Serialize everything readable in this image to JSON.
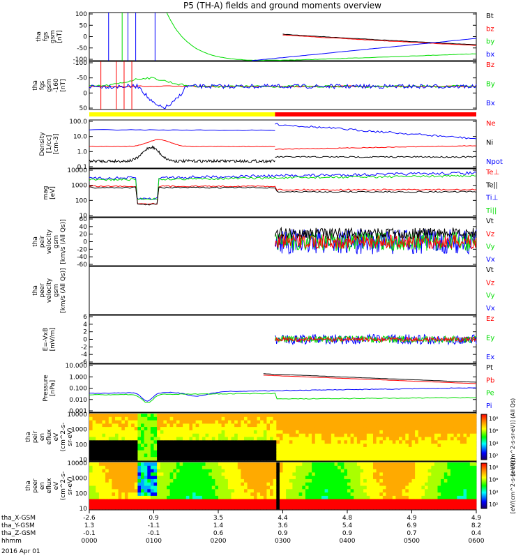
{
  "title": "P5 (TH-A) fields and ground moments overview",
  "colors": {
    "black": "#000000",
    "red": "#ff0000",
    "green": "#00dd00",
    "blue": "#0000ff",
    "yellow": "#ffff00"
  },
  "chart_data": [
    {
      "type": "line",
      "panel": "fgs",
      "ylabel": [
        "tha",
        "fgs",
        "gsm",
        "[nT]"
      ],
      "yticks": [
        "100",
        "50",
        "0",
        "-50",
        "-100"
      ],
      "legend": [
        {
          "label": "Bt",
          "color": "#000000"
        },
        {
          "label": "bz",
          "color": "#ff0000"
        },
        {
          "label": "by",
          "color": "#00dd00"
        },
        {
          "label": "bx",
          "color": "#0000ff"
        }
      ]
    },
    {
      "type": "line",
      "panel": "fgs_dsl",
      "ylabel": [
        "tha",
        "fgs",
        "gsm",
        "-160",
        "[nT]"
      ],
      "yticks": [
        "-100",
        "-50",
        "0",
        "50"
      ],
      "legend": [
        {
          "label": "Bz",
          "color": "#ff0000"
        },
        {
          "label": "By",
          "color": "#00dd00"
        },
        {
          "label": "Bx",
          "color": "#0000ff"
        }
      ]
    },
    {
      "type": "line",
      "panel": "density",
      "ylabel": [
        "Density",
        "[1/cc]",
        "[cm-3]"
      ],
      "yticks": [
        "100.0",
        "10.0",
        "1.0",
        "0.1"
      ],
      "legend": [
        {
          "label": "Ne",
          "color": "#ff0000"
        },
        {
          "label": "Ni",
          "color": "#000000"
        },
        {
          "label": "Npot",
          "color": "#0000ff"
        }
      ]
    },
    {
      "type": "line",
      "panel": "temp",
      "ylabel": [
        "mag",
        "[eV]"
      ],
      "yticks": [
        "10000",
        "1000",
        "100",
        "10"
      ],
      "legend": [
        {
          "label": "Te⊥",
          "color": "#ff0000"
        },
        {
          "label": "Te||",
          "color": "#000000"
        },
        {
          "label": "Ti⊥",
          "color": "#0000ff"
        },
        {
          "label": "Ti||",
          "color": "#00dd00"
        }
      ]
    },
    {
      "type": "line",
      "panel": "ion_velocity",
      "ylabel": [
        "tha",
        "peir",
        "velocity",
        "gsm",
        "[km/s (All Qs)]"
      ],
      "yticks": [
        "60",
        "40",
        "20",
        "0",
        "-20",
        "-40",
        "-60"
      ],
      "legend": [
        {
          "label": "Vt",
          "color": "#000000"
        },
        {
          "label": "Vz",
          "color": "#ff0000"
        },
        {
          "label": "Vy",
          "color": "#00dd00"
        },
        {
          "label": "Vx",
          "color": "#0000ff"
        }
      ]
    },
    {
      "type": "line",
      "panel": "electron_velocity",
      "ylabel": [
        "tha",
        "peer",
        "velocity",
        "gsm",
        "[km/s (All Qs)]"
      ],
      "yticks": [],
      "legend": [
        {
          "label": "Vt",
          "color": "#000000"
        },
        {
          "label": "Vz",
          "color": "#ff0000"
        },
        {
          "label": "Vy",
          "color": "#00dd00"
        },
        {
          "label": "Vx",
          "color": "#0000ff"
        }
      ]
    },
    {
      "type": "line",
      "panel": "efield",
      "ylabel": [
        "E=-VxB",
        "[mV/m]"
      ],
      "yticks": [
        "6",
        "4",
        "2",
        "0",
        "-2",
        "-4",
        "-6"
      ],
      "legend": [
        {
          "label": "Ez",
          "color": "#ff0000"
        },
        {
          "label": "Ey",
          "color": "#00dd00"
        },
        {
          "label": "Ex",
          "color": "#0000ff"
        }
      ]
    },
    {
      "type": "line",
      "panel": "pressure",
      "ylabel": [
        "Pressure",
        "[nPa]"
      ],
      "yticks": [
        "10.000",
        "1.000",
        "0.100",
        "0.010",
        "0.001"
      ],
      "legend": [
        {
          "label": "Pt",
          "color": "#000000"
        },
        {
          "label": "Pb",
          "color": "#ff0000"
        },
        {
          "label": "Pe",
          "color": "#00dd00"
        },
        {
          "label": "Pi",
          "color": "#0000ff"
        }
      ]
    },
    {
      "type": "heatmap",
      "panel": "ion_eflux",
      "ylabel": [
        "tha",
        "peir",
        "en",
        "eflux",
        "eV",
        "(cm^2-s-",
        "sr-eV)"
      ],
      "yticks": [
        "10000",
        "1000",
        "100",
        "10"
      ],
      "colorbar": {
        "ticks": [
          "10⁸",
          "10⁶",
          "10⁴",
          "10²"
        ],
        "label": "[eV/(cm^2-s-sr-eV)] (All Qs)"
      }
    },
    {
      "type": "heatmap",
      "panel": "electron_eflux",
      "ylabel": [
        "tha",
        "peer",
        "en",
        "eflux",
        "eV",
        "(cm^2-s-",
        "sr-eV)"
      ],
      "yticks": [
        "10000",
        "1000",
        "100",
        "10"
      ],
      "colorbar": {
        "ticks": [
          "10⁸",
          "10⁶",
          "10⁴",
          "10²"
        ],
        "label": "[eV/(cm^2-s-sr-eV)]"
      }
    }
  ],
  "xaxis": {
    "rows": [
      {
        "label": "tha_X-GSM",
        "values": [
          "-2.6",
          "0.9",
          "3.5",
          "4.4",
          "4.8",
          "4.9",
          "4.9"
        ]
      },
      {
        "label": "tha_Y-GSM",
        "values": [
          "1.3",
          "-1.1",
          "1.4",
          "3.6",
          "5.4",
          "6.9",
          "8.2"
        ]
      },
      {
        "label": "tha_Z-GSM",
        "values": [
          "-0.1",
          "-0.1",
          "0.6",
          "0.9",
          "0.9",
          "0.7",
          "0.4"
        ]
      },
      {
        "label": "hhmm",
        "values": [
          "0000",
          "0100",
          "0200",
          "0300",
          "0400",
          "0500",
          "0600"
        ]
      }
    ],
    "date": "2016 Apr 01"
  }
}
